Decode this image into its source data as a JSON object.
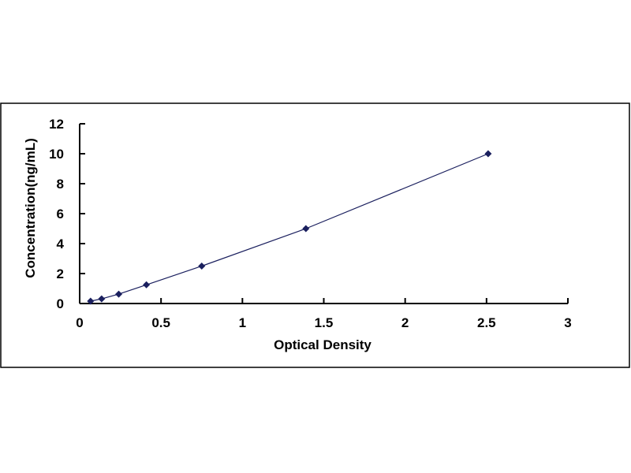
{
  "chart_data": {
    "type": "scatter",
    "title": "",
    "xlabel": "Optical Density",
    "ylabel": "Concentration(ng/mL)",
    "xlim": [
      0,
      3
    ],
    "ylim": [
      0,
      12
    ],
    "xticks": [
      "0",
      "0.5",
      "1",
      "1.5",
      "2",
      "2.5",
      "3"
    ],
    "yticks": [
      "0",
      "2",
      "4",
      "6",
      "8",
      "10",
      "12"
    ],
    "grid": false,
    "legend": "none",
    "trendline": true,
    "marker_color": "#1a1f5e",
    "line_color": "#1a1f5e",
    "series": [
      {
        "x": [
          0.067,
          0.135,
          0.24,
          0.41,
          0.75,
          1.39,
          2.51
        ],
        "y": [
          0.156,
          0.312,
          0.625,
          1.25,
          2.5,
          5,
          10
        ]
      }
    ]
  }
}
